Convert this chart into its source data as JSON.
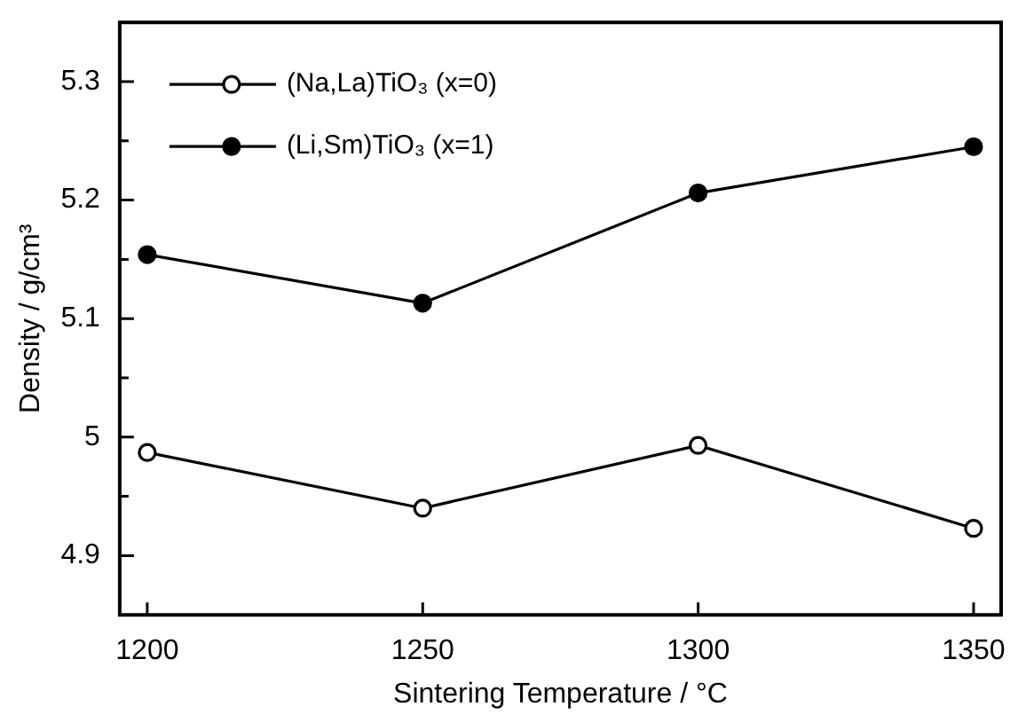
{
  "chart_data": {
    "type": "line",
    "xlabel": "Sintering Temperature / °C",
    "ylabel": "Density / g/cm³",
    "x": [
      1200,
      1250,
      1300,
      1350
    ],
    "series": [
      {
        "name": "(Na,La)TiO₃ (x=0)",
        "color": "#000000",
        "values": [
          4.987,
          4.94,
          4.993,
          4.923
        ]
      },
      {
        "name": "(Li,Sm)TiO₃ (x=1)",
        "color": "#000000",
        "values": [
          5.154,
          5.113,
          5.206,
          5.245
        ]
      }
    ],
    "xlim": [
      1195,
      1355
    ],
    "xticks": [
      1200,
      1250,
      1300,
      1350
    ],
    "ylim": [
      4.85,
      5.35
    ],
    "yticks": [
      {
        "value": 4.9,
        "label": "4.9"
      },
      {
        "value": 4.95,
        "label": null
      },
      {
        "value": 5,
        "label": "5"
      },
      {
        "value": 5.05,
        "label": null
      },
      {
        "value": 5.1,
        "label": "5.1"
      },
      {
        "value": 5.15,
        "label": null
      },
      {
        "value": 5.2,
        "label": "5.2"
      },
      {
        "value": 5.25,
        "label": null
      },
      {
        "value": 5.3,
        "label": "5.3"
      }
    ],
    "grid": false,
    "legend": "top left",
    "marker": "circle",
    "line_style": "solid"
  }
}
